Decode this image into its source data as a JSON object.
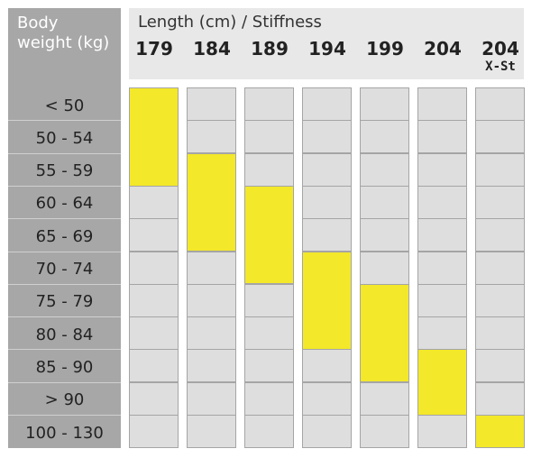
{
  "header": {
    "weight_title_line1": "Body",
    "weight_title_line2": "weight (kg)",
    "length_title": "Length (cm) / Stiffness"
  },
  "columns": [
    {
      "label": "179",
      "sub": ""
    },
    {
      "label": "184",
      "sub": ""
    },
    {
      "label": "189",
      "sub": ""
    },
    {
      "label": "194",
      "sub": ""
    },
    {
      "label": "199",
      "sub": ""
    },
    {
      "label": "204",
      "sub": ""
    },
    {
      "label": "204",
      "sub": "X-St"
    }
  ],
  "rows": [
    "< 50",
    "50 - 54",
    "55 - 59",
    "60 - 64",
    "65 - 69",
    "70 - 74",
    "75 - 79",
    "80 - 84",
    "85 - 90",
    "> 90",
    "100 - 130"
  ],
  "highlights": [
    {
      "col": 0,
      "from_row": 0,
      "to_row": 2
    },
    {
      "col": 1,
      "from_row": 2,
      "to_row": 4
    },
    {
      "col": 2,
      "from_row": 3,
      "to_row": 5
    },
    {
      "col": 3,
      "from_row": 5,
      "to_row": 7
    },
    {
      "col": 4,
      "from_row": 6,
      "to_row": 8
    },
    {
      "col": 5,
      "from_row": 8,
      "to_row": 9
    },
    {
      "col": 6,
      "from_row": 10,
      "to_row": 10
    }
  ],
  "colors": {
    "highlight": "#f3e82a",
    "cell": "#dedede",
    "weight_column": "#a7a7a7",
    "header": "#e8e8e8"
  }
}
